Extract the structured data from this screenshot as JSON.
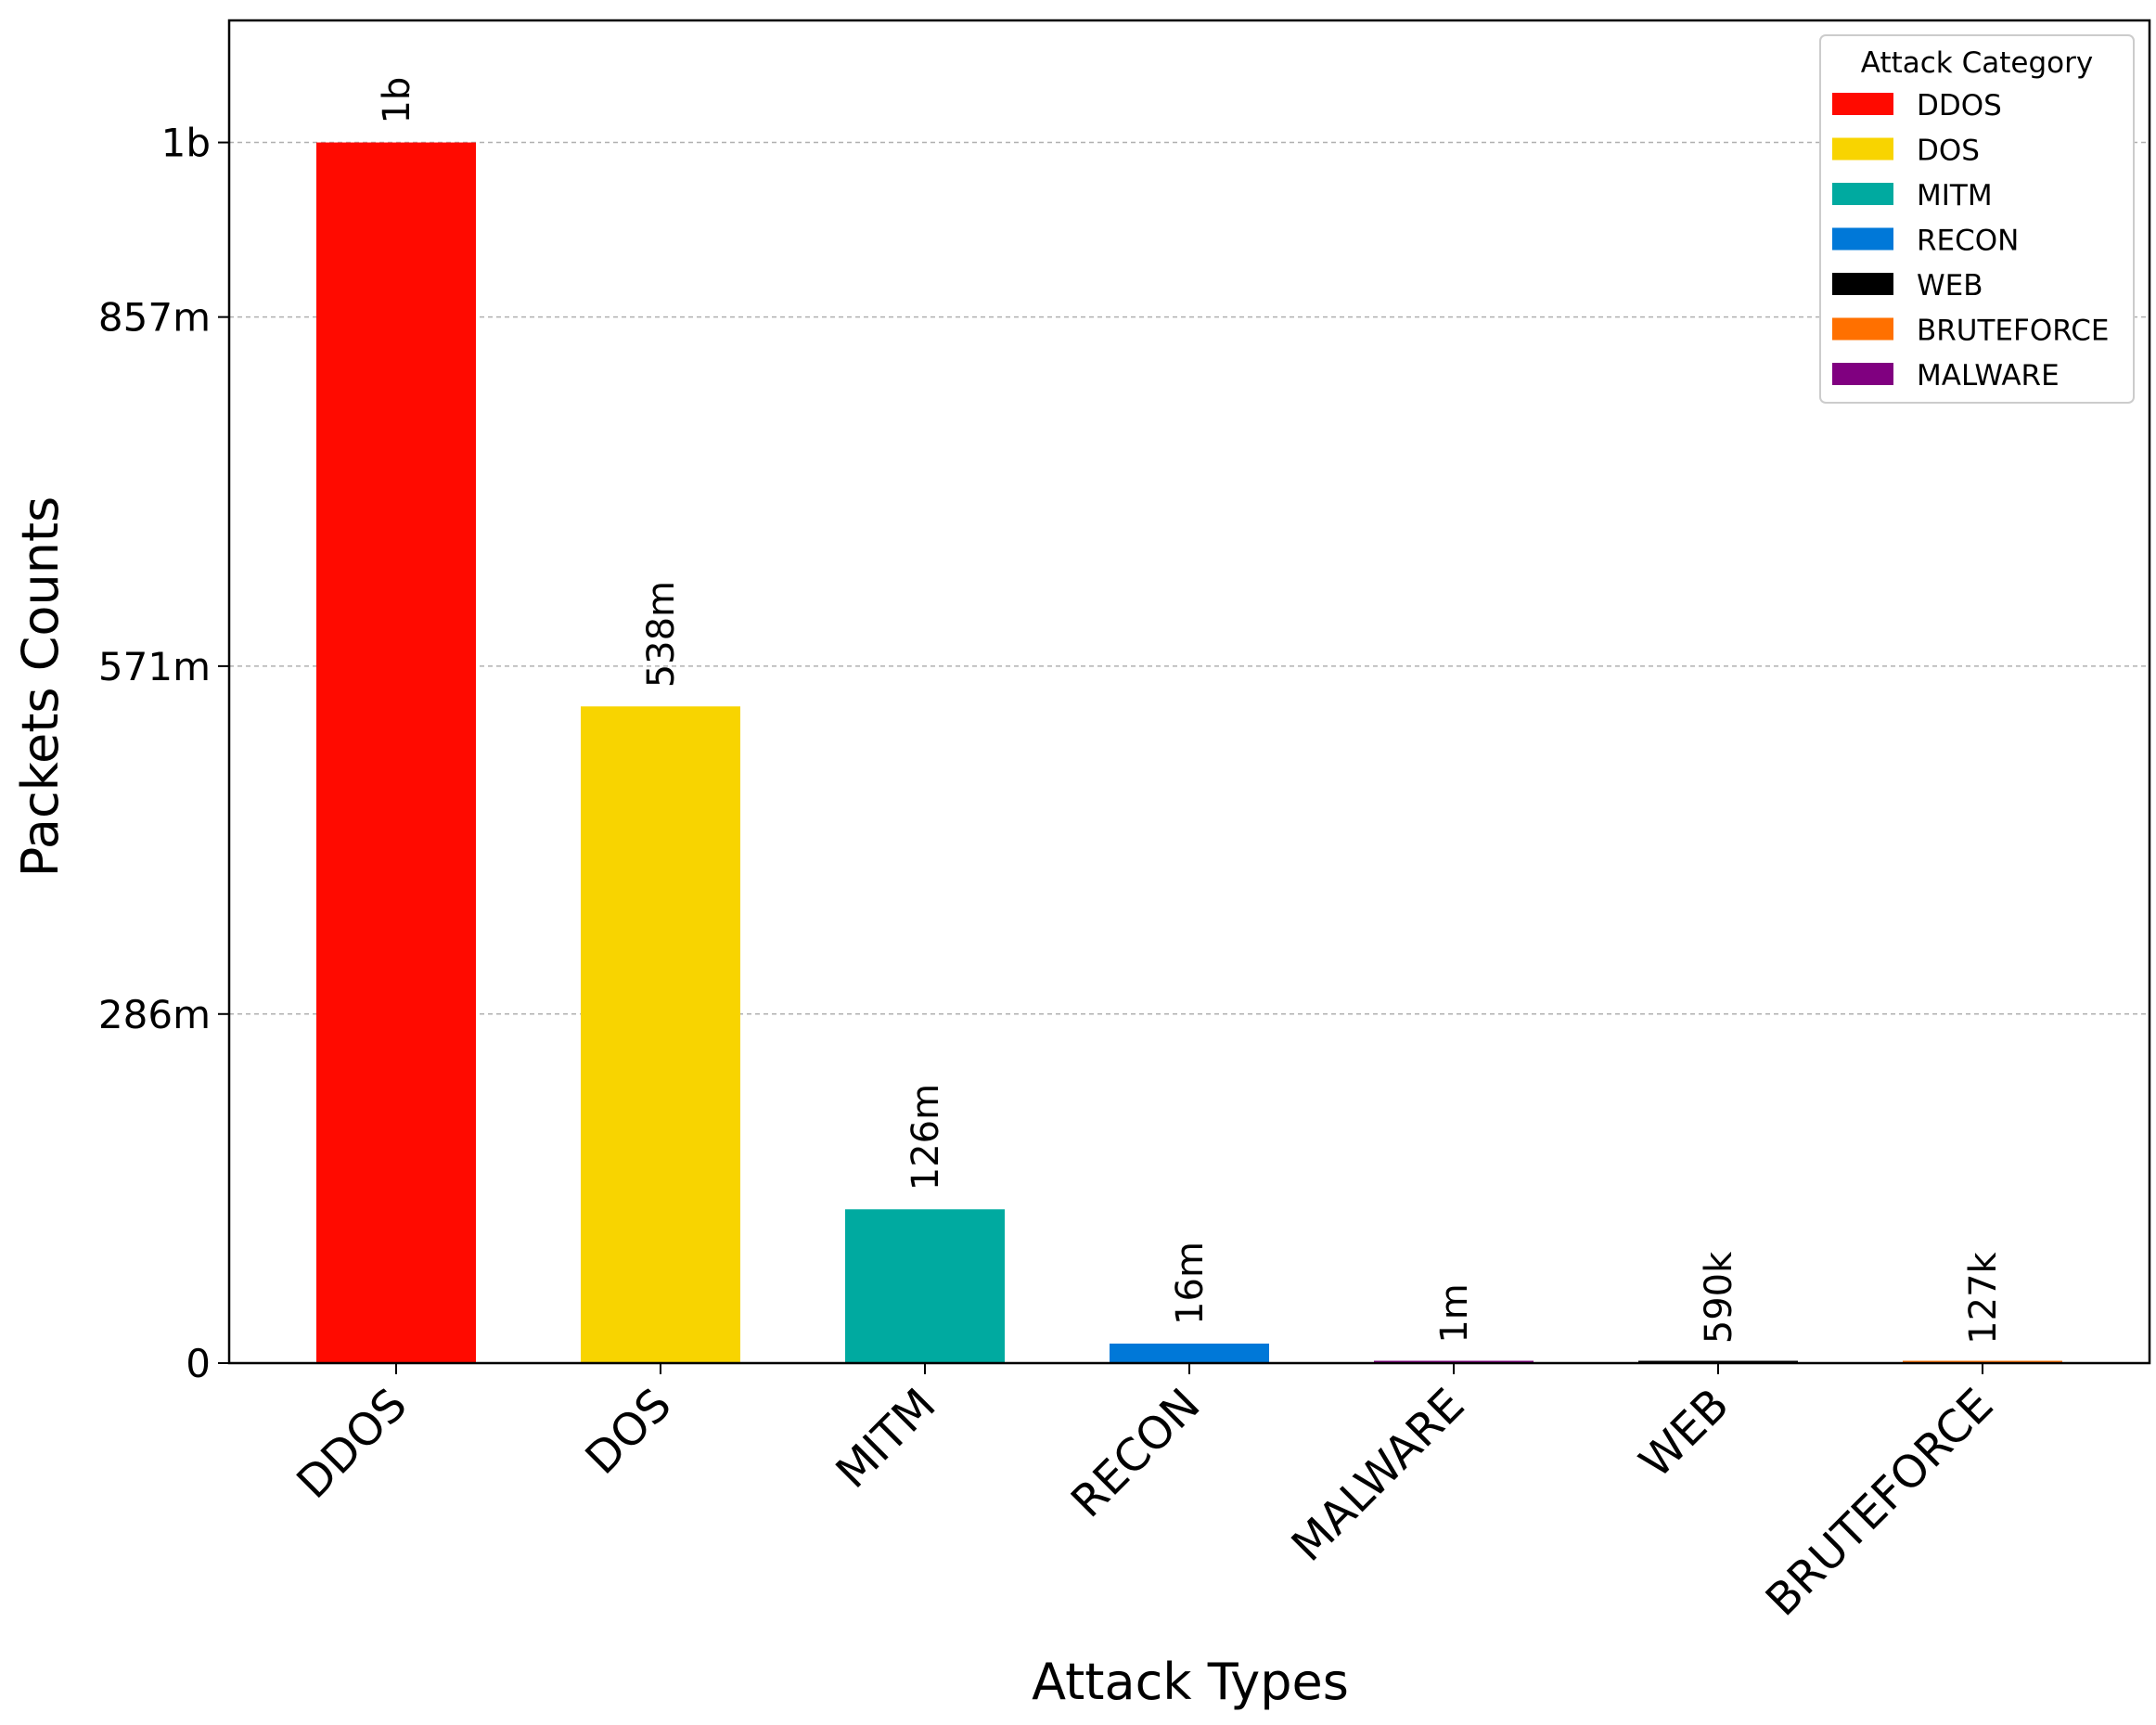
{
  "chart_data": {
    "type": "bar",
    "xlabel": "Attack Types",
    "ylabel": "Packets Counts",
    "categories": [
      "DDOS",
      "DOS",
      "MITM",
      "RECON",
      "MALWARE",
      "WEB",
      "BRUTEFORCE"
    ],
    "values": [
      1000000000,
      538000000,
      126000000,
      16000000,
      1000000,
      590000,
      127000
    ],
    "data_labels": [
      "1b",
      "538m",
      "126m",
      "16m",
      "1m",
      "590k",
      "127k"
    ],
    "bar_colors": [
      "#ff0a00",
      "#f8d400",
      "#00aaa0",
      "#0078d8",
      "#800080",
      "#000000",
      "#ff7000"
    ],
    "ylim": [
      0,
      1100000000
    ],
    "yticks": [
      0,
      286000000,
      571000000,
      857000000,
      1000000000
    ],
    "ytick_labels": [
      "0",
      "286m",
      "571m",
      "857m",
      "1b"
    ],
    "grid": "horizontal dashed",
    "legend": {
      "title": "Attack Category",
      "position": "top-right",
      "entries": [
        {
          "label": "DDOS",
          "color": "#ff0a00"
        },
        {
          "label": "DOS",
          "color": "#f8d400"
        },
        {
          "label": "MITM",
          "color": "#00aaa0"
        },
        {
          "label": "RECON",
          "color": "#0078d8"
        },
        {
          "label": "WEB",
          "color": "#000000"
        },
        {
          "label": "BRUTEFORCE",
          "color": "#ff7000"
        },
        {
          "label": "MALWARE",
          "color": "#800080"
        }
      ]
    }
  }
}
